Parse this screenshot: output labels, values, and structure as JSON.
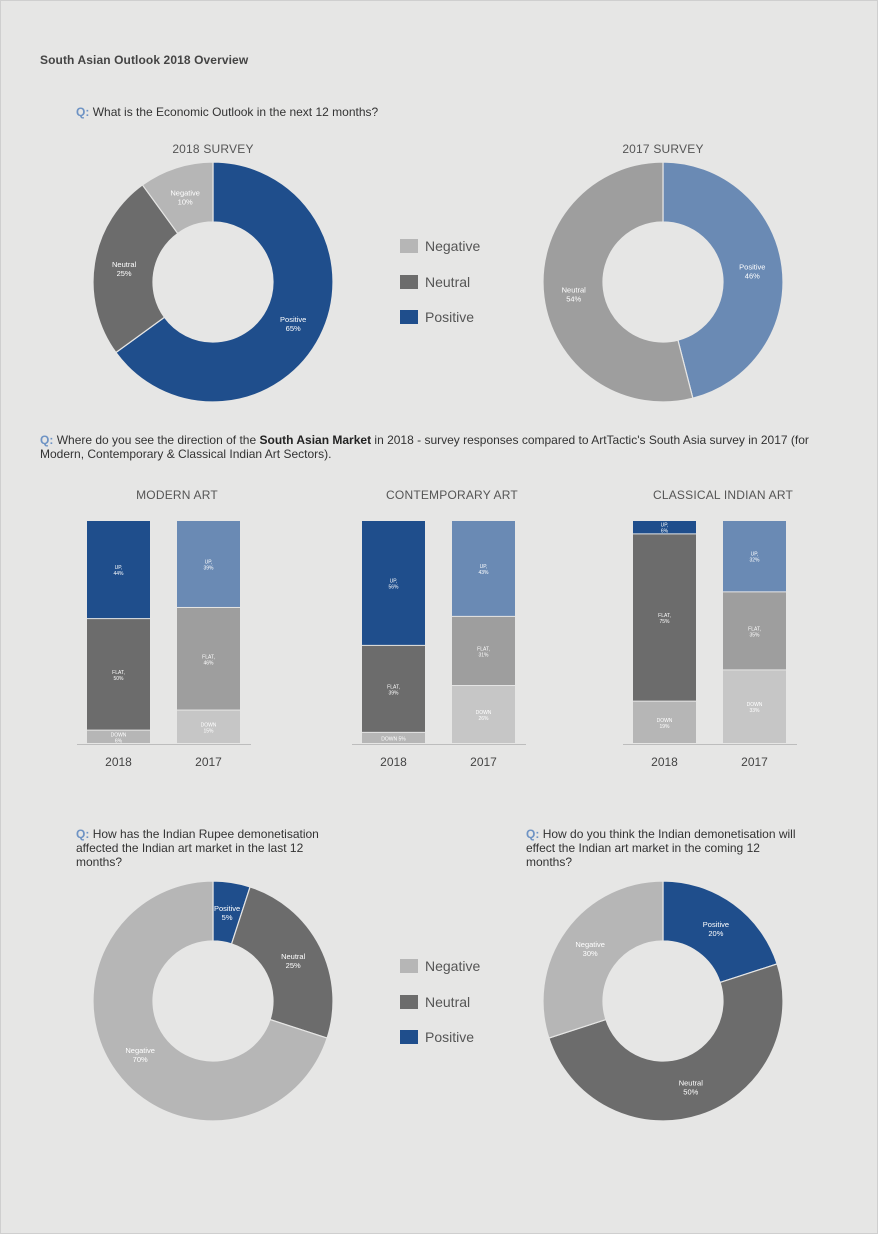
{
  "title": "South Asian Outlook 2018 Overview",
  "questions": {
    "q1": {
      "prefix": "Q:",
      "text": "What is the Economic Outlook in the next 12 months?"
    },
    "q2": {
      "prefix": "Q:",
      "text_before": "Where do you see the direction of the",
      "bold": "South Asian Market",
      "text_after": "in 2018 - survey responses compared to ArtTactic's South Asia survey in 2017 (for Modern, Contemporary & Classical Indian Art Sectors)."
    },
    "q3": {
      "prefix": "Q:",
      "text": "How has the Indian Rupee demonetisation affected the Indian art market in the last 12 months?"
    },
    "q4": {
      "prefix": "Q:",
      "text": "How do you think the Indian demonetisation will effect the Indian art market in the coming 12 months?"
    }
  },
  "colors": {
    "negative": "#b6b6b6",
    "neutral": "#6c6c6c",
    "positive": "#1f4e8c",
    "positive_light": "#6a8ab4",
    "neutral_light": "#9e9e9e",
    "negative_light": "#c6c6c6"
  },
  "legends": [
    {
      "items": [
        {
          "label": "Negative",
          "color": "#b6b6b6"
        },
        {
          "label": "Neutral",
          "color": "#6c6c6c"
        },
        {
          "label": "Positive",
          "color": "#1f4e8c"
        }
      ]
    },
    {
      "items": [
        {
          "label": "Negative",
          "color": "#b6b6b6"
        },
        {
          "label": "Neutral",
          "color": "#6c6c6c"
        },
        {
          "label": "Positive",
          "color": "#1f4e8c"
        }
      ]
    }
  ],
  "chart_data": [
    {
      "type": "pie",
      "donut": true,
      "title": "2018 SURVEY",
      "slices": [
        {
          "name": "Positive",
          "value": 65,
          "label": "Positive",
          "pct": "65%",
          "color": "#1f4e8c"
        },
        {
          "name": "Neutral",
          "value": 25,
          "label": "Neutral",
          "pct": "25%",
          "color": "#6c6c6c"
        },
        {
          "name": "Negative",
          "value": 10,
          "label": "Negative",
          "pct": "10%",
          "color": "#b6b6b6"
        }
      ]
    },
    {
      "type": "pie",
      "donut": true,
      "title": "2017 SURVEY",
      "slices": [
        {
          "name": "Positive",
          "value": 46,
          "label": "Positive",
          "pct": "46%",
          "color": "#6a8ab4"
        },
        {
          "name": "Neutral",
          "value": 54,
          "label": "Neutral",
          "pct": "54%",
          "color": "#9e9e9e"
        }
      ]
    },
    {
      "type": "bar",
      "stacked": true,
      "title": "MODERN ART",
      "categories": [
        "2018",
        "2017"
      ],
      "series": [
        {
          "name": "DOWN",
          "values": [
            6,
            15
          ],
          "labels": [
            "DOWN 6%",
            "DOWN 15%"
          ]
        },
        {
          "name": "FLAT",
          "values": [
            50,
            46
          ],
          "labels": [
            "FLAT, 50%",
            "FLAT, 46%"
          ]
        },
        {
          "name": "UP",
          "values": [
            44,
            39
          ],
          "labels": [
            "UP, 44%",
            "UP, 39%"
          ]
        }
      ]
    },
    {
      "type": "bar",
      "stacked": true,
      "title": "CONTEMPORARY ART",
      "categories": [
        "2018",
        "2017"
      ],
      "series": [
        {
          "name": "DOWN",
          "values": [
            5,
            26
          ],
          "labels": [
            "DOWN 5%",
            "DOWN 26%"
          ]
        },
        {
          "name": "FLAT",
          "values": [
            39,
            31
          ],
          "labels": [
            "FLAT, 39%",
            "FLAT, 31%"
          ]
        },
        {
          "name": "UP",
          "values": [
            56,
            43
          ],
          "labels": [
            "UP, 56%",
            "UP, 43%"
          ]
        }
      ]
    },
    {
      "type": "bar",
      "stacked": true,
      "title": "CLASSICAL INDIAN ART",
      "categories": [
        "2018",
        "2017"
      ],
      "series": [
        {
          "name": "DOWN",
          "values": [
            19,
            33
          ],
          "labels": [
            "DOWN 19%",
            "DOWN 33%"
          ]
        },
        {
          "name": "FLAT",
          "values": [
            75,
            35
          ],
          "labels": [
            "FLAT, 75%",
            "FLAT, 35%"
          ]
        },
        {
          "name": "UP",
          "values": [
            6,
            32
          ],
          "labels": [
            "UP, 6%",
            "UP, 32%"
          ]
        }
      ]
    },
    {
      "type": "pie",
      "donut": true,
      "title": "",
      "slices": [
        {
          "name": "Positive",
          "value": 5,
          "label": "Positive",
          "pct": "5%",
          "color": "#1f4e8c"
        },
        {
          "name": "Neutral",
          "value": 25,
          "label": "Neutral",
          "pct": "25%",
          "color": "#6c6c6c"
        },
        {
          "name": "Negative",
          "value": 70,
          "label": "Negative",
          "pct": "70%",
          "color": "#b6b6b6"
        }
      ]
    },
    {
      "type": "pie",
      "donut": true,
      "title": "",
      "slices": [
        {
          "name": "Positive",
          "value": 20,
          "label": "Positive",
          "pct": "20%",
          "color": "#1f4e8c"
        },
        {
          "name": "Neutral",
          "value": 50,
          "label": "Neutral",
          "pct": "50%",
          "color": "#6c6c6c"
        },
        {
          "name": "Negative",
          "value": 30,
          "label": "Negative",
          "pct": "30%",
          "color": "#b6b6b6"
        }
      ]
    }
  ]
}
